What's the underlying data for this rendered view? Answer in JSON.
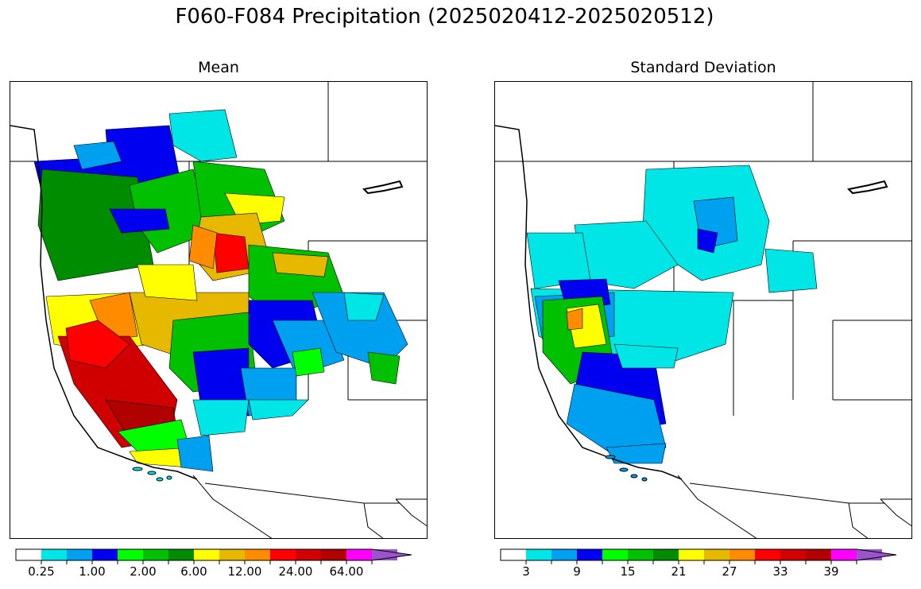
{
  "figure": {
    "title": "F060-F084 Precipitation (2025020412-2025020512)"
  },
  "panels": {
    "mean": {
      "title": "Mean"
    },
    "std": {
      "title": "Standard Deviation"
    }
  },
  "colormap": [
    "#ffffff",
    "#00e5e5",
    "#00a0f0",
    "#0000f0",
    "#00ff00",
    "#00c000",
    "#008c00",
    "#ffff00",
    "#e6b800",
    "#ff8c00",
    "#ff0000",
    "#d00000",
    "#b00000",
    "#ff00ff",
    "#9955c9"
  ],
  "colorbars": {
    "mean": {
      "labels": [
        "0.25",
        "1.00",
        "2.00",
        "6.00",
        "12.00",
        "24.00",
        "64.00"
      ]
    },
    "std": {
      "labels": [
        "3",
        "9",
        "15",
        "21",
        "27",
        "33",
        "39"
      ]
    }
  },
  "colors": {
    "ocean": "#ffffff",
    "boundary": "#000000"
  }
}
